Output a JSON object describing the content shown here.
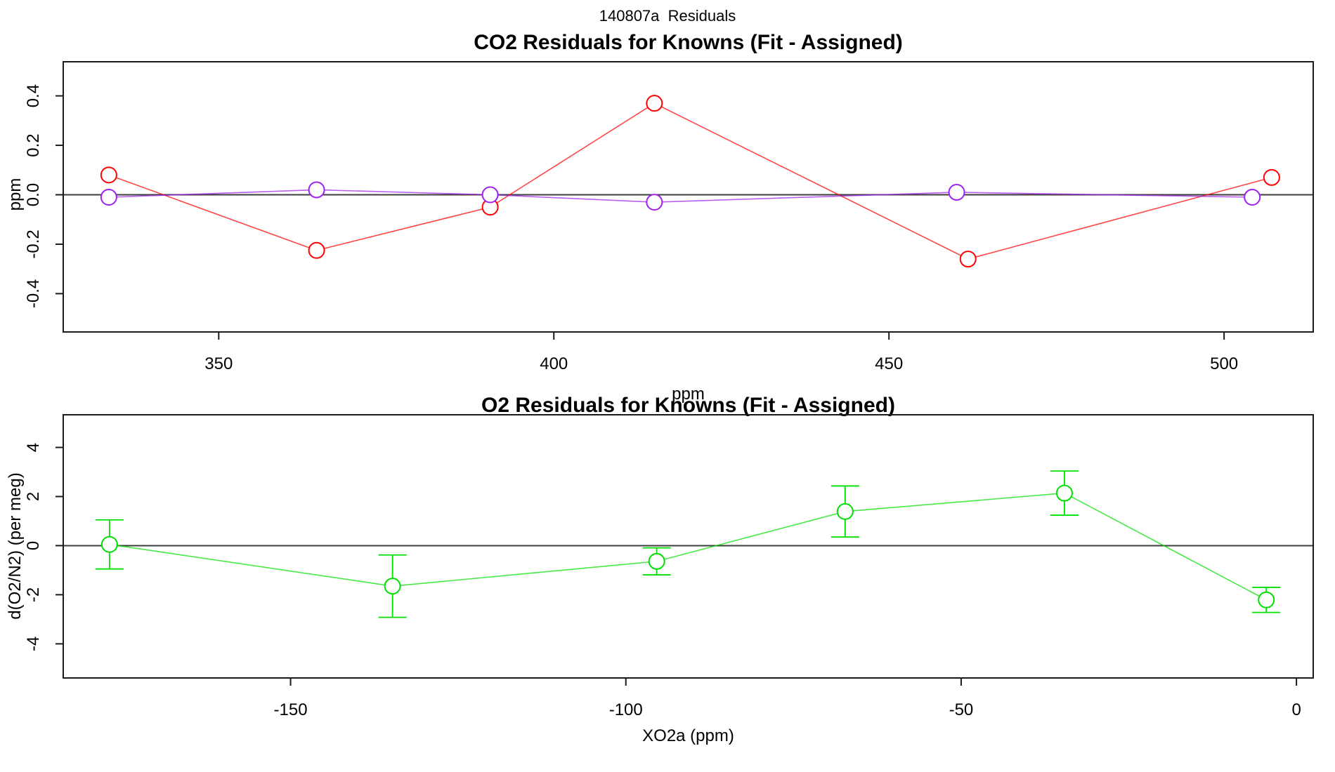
{
  "main_title": "140807a  Residuals",
  "colors": {
    "co2_series_red": "#ff0000",
    "co2_series_purple": "#a020f0",
    "o2_series_green": "#00e000",
    "zero_line": "#3d3d3d",
    "axis": "#1a1a1a"
  },
  "chart_data": [
    {
      "id": "co2",
      "type": "line",
      "title": "CO2 Residuals for Knowns (Fit - Assigned)",
      "xlabel": "ppm",
      "ylabel": "ppm",
      "xlim": [
        326.8,
        513.3
      ],
      "ylim": [
        -0.555,
        0.538
      ],
      "xticks": [
        350,
        400,
        450,
        500
      ],
      "xtick_labels": [
        "350",
        "400",
        "450",
        "500"
      ],
      "yticks": [
        -0.4,
        -0.2,
        0.0,
        0.2,
        0.4
      ],
      "ytick_labels": [
        "-0.4",
        "-0.2",
        "0.0",
        "0.2",
        "0.4"
      ],
      "grid": false,
      "legend": "none",
      "zero_line": true,
      "series": [
        {
          "name": "co2-residual-red",
          "color": "#ff0000",
          "marker": "open-circle",
          "x": [
            333.6,
            364.6,
            390.5,
            415.0,
            461.8,
            507.1
          ],
          "y": [
            0.08,
            -0.225,
            -0.05,
            0.37,
            -0.26,
            0.07
          ]
        },
        {
          "name": "co2-residual-purple",
          "color": "#a020f0",
          "marker": "open-circle",
          "x": [
            333.6,
            364.6,
            390.5,
            415.0,
            460.1,
            504.2
          ],
          "y": [
            -0.01,
            0.02,
            0.0,
            -0.03,
            0.01,
            -0.01
          ]
        }
      ]
    },
    {
      "id": "o2",
      "type": "line",
      "title": "O2 Residuals for Knowns (Fit - Assigned)",
      "xlabel": "XO2a (ppm)",
      "ylabel": "d(O2/N2) (per meg)",
      "xlim": [
        -183.9,
        2.5
      ],
      "ylim": [
        -5.39,
        5.33
      ],
      "xticks": [
        -150,
        -100,
        -50,
        0
      ],
      "xtick_labels": [
        "-150",
        "-100",
        "-50",
        "0"
      ],
      "yticks": [
        -4,
        -2,
        0,
        2,
        4
      ],
      "ytick_labels": [
        "-4",
        "-2",
        "0",
        "2",
        "4"
      ],
      "grid": false,
      "legend": "none",
      "zero_line": true,
      "series": [
        {
          "name": "o2-residual-green",
          "color": "#00e000",
          "marker": "open-circle",
          "x": [
            -177.0,
            -134.8,
            -95.4,
            -67.3,
            -34.6,
            -4.5
          ],
          "y": [
            0.05,
            -1.65,
            -0.64,
            1.39,
            2.14,
            -2.21
          ],
          "yerr": [
            1.0,
            1.27,
            0.55,
            1.04,
            0.9,
            0.51
          ]
        }
      ]
    }
  ]
}
